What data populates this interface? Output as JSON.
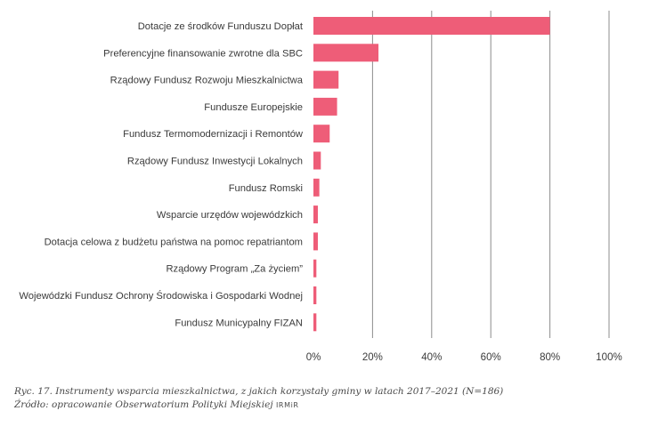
{
  "chart_data": {
    "type": "bar",
    "orientation": "horizontal",
    "categories": [
      "Dotacje ze środków Funduszu Dopłat",
      "Preferencyjne finansowanie zwrotne dla SBC",
      "Rządowy Fundusz Rozwoju Mieszkalnictwa",
      "Fundusze Europejskie",
      "Fundusz Termomodernizacji i Remontów",
      "Rządowy Fundusz Inwestycji Lokalnych",
      "Fundusz Romski",
      "Wsparcie urzędów wojewódzkich",
      "Dotacja celowa z budżetu państwa na pomoc repatriantom",
      "Rządowy Program „Za życiem”",
      "Wojewódzki Fundusz Ochrony Środowiska i Gospodarki Wodnej",
      "Fundusz Municypalny FIZAN"
    ],
    "values": [
      80,
      22,
      8.5,
      8,
      5.5,
      2.5,
      2,
      1.5,
      1.5,
      1,
      1,
      1
    ],
    "xlim": [
      0,
      100
    ],
    "xticks": [
      "0%",
      "20%",
      "40%",
      "60%",
      "80%",
      "100%"
    ],
    "xtick_values": [
      0,
      20,
      40,
      60,
      80,
      100
    ],
    "grid": "vertical",
    "bar_color": "#ee5d78",
    "grid_color": "#8c8c8c"
  },
  "caption": {
    "line1": "Ryc. 17. Instrumenty wsparcia mieszkalnictwa, z jakich korzystały gminy w latach 2017–2021 (N=186)",
    "line2_prefix": "Źródło: opracowanie Obserwatorium Polityki Miejskiej",
    "line2_logo": "IRMiR"
  }
}
